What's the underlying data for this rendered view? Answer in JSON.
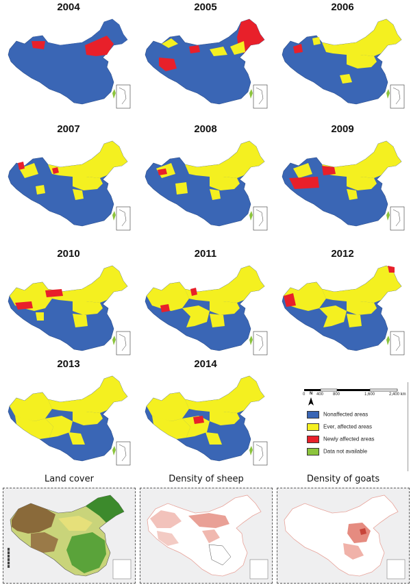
{
  "maps": [
    {
      "year": "2004",
      "state": "s2004"
    },
    {
      "year": "2005",
      "state": "s2005"
    },
    {
      "year": "2006",
      "state": "s2006"
    },
    {
      "year": "2007",
      "state": "s2007"
    },
    {
      "year": "2008",
      "state": "s2008"
    },
    {
      "year": "2009",
      "state": "s2009"
    },
    {
      "year": "2010",
      "state": "s2010"
    },
    {
      "year": "2011",
      "state": "s2011"
    },
    {
      "year": "2012",
      "state": "s2012"
    },
    {
      "year": "2013",
      "state": "s2013"
    },
    {
      "year": "2014",
      "state": "s2014"
    }
  ],
  "legend": {
    "scale_ticks": [
      "0",
      "400",
      "800",
      "1,600",
      "2,400 km"
    ],
    "north": "N",
    "items": [
      {
        "label": "Nonaffected areas",
        "color": "#3a66b5"
      },
      {
        "label": "Ever, affected areas",
        "color": "#f4f020"
      },
      {
        "label": "Newly affected areas",
        "color": "#e8202a"
      },
      {
        "label": "Data not available",
        "color": "#8cc43c"
      }
    ]
  },
  "bottom_maps": [
    {
      "title": "Land cover"
    },
    {
      "title": "Density of sheep"
    },
    {
      "title": "Density of goats"
    }
  ],
  "colors": {
    "nonaffected": "#3a66b5",
    "ever": "#f4f020",
    "newly": "#e8202a",
    "na": "#8cc43c"
  }
}
